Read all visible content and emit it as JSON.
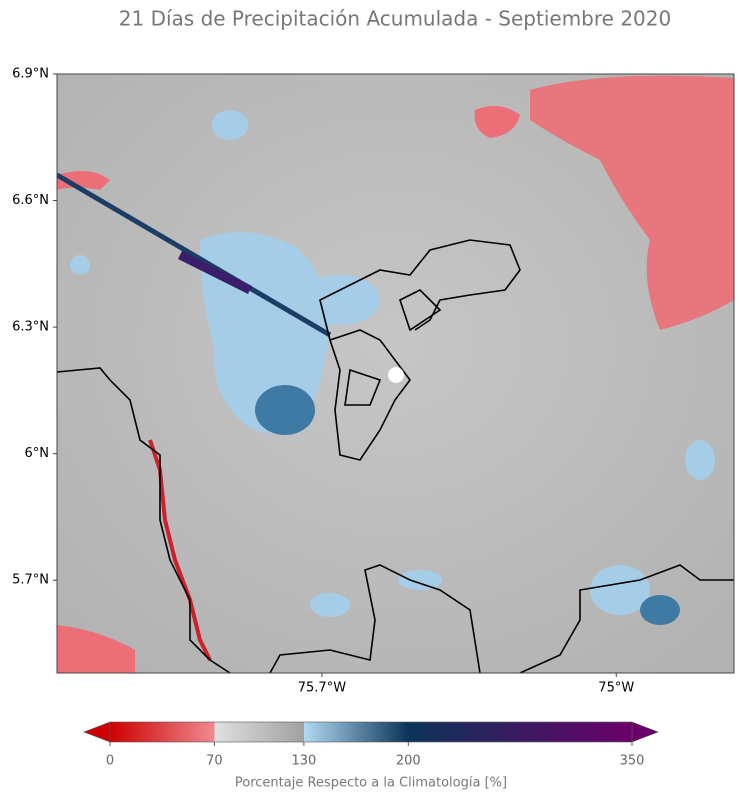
{
  "title": "21 Días de Precipitación Acumulada - Septiembre 2020",
  "map": {
    "xlim": [
      -76.33,
      -74.72
    ],
    "ylim": [
      5.48,
      6.9
    ],
    "yticks": [
      {
        "value": 6.9,
        "label": "6.9°N"
      },
      {
        "value": 6.6,
        "label": "6.6°N"
      },
      {
        "value": 6.3,
        "label": "6.3°N"
      },
      {
        "value": 6,
        "label": "6°N"
      },
      {
        "value": 5.7,
        "label": "5.7°N"
      }
    ],
    "xticks": [
      {
        "value": -75.7,
        "label": "75.7°W"
      },
      {
        "value": -75,
        "label": "75°W"
      }
    ]
  },
  "colorbar": {
    "lim": [
      0,
      350
    ],
    "ticks": [
      0,
      70,
      130,
      200,
      350
    ],
    "label": "Porcentaje Respecto a la Climatología [%]"
  }
}
